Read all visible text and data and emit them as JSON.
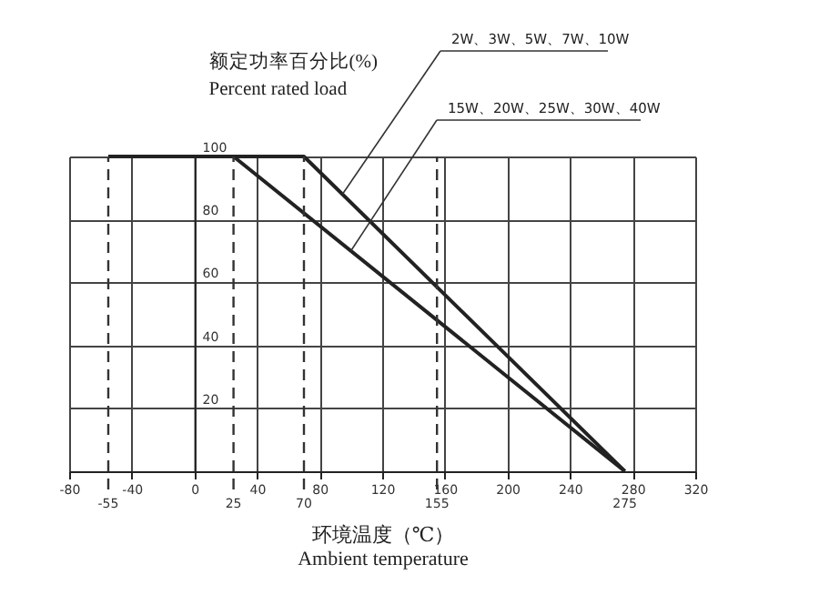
{
  "chart_data": {
    "type": "line",
    "xlabel": "环境温度（℃）\nAmbient temperature",
    "ylabel": "额定功率百分比(%)\nPercent rated load",
    "series": [
      {
        "name": "2W、3W、5W、7W、10W",
        "color": "#222222",
        "x": [
          -55,
          70,
          275
        ],
        "values": [
          100,
          100,
          0
        ]
      },
      {
        "name": "15W、20W、25W、30W、40W",
        "color": "#222222",
        "x": [
          -55,
          25,
          275
        ],
        "values": [
          100,
          100,
          0
        ]
      }
    ],
    "xlim": [
      -80,
      320
    ],
    "ylim": [
      0,
      100
    ],
    "xticks": [
      -80,
      -40,
      0,
      40,
      80,
      120,
      160,
      200,
      240,
      280,
      320
    ],
    "yticks": [
      20,
      40,
      60,
      80,
      100
    ],
    "ref_lines": [
      {
        "axis": "x",
        "value": -55,
        "label": "-55",
        "line_style": "dashed"
      },
      {
        "axis": "x",
        "value": 25,
        "label": "25",
        "line_style": "dashed"
      },
      {
        "axis": "x",
        "value": 70,
        "label": "70",
        "line_style": "dashed"
      },
      {
        "axis": "x",
        "value": 155,
        "label": "155",
        "line_style": "dashed"
      }
    ],
    "annotations": [
      {
        "text": "275",
        "x": 275,
        "y": 0
      }
    ],
    "grid": true,
    "marker": "none",
    "line_style": "solid",
    "legend": false
  }
}
